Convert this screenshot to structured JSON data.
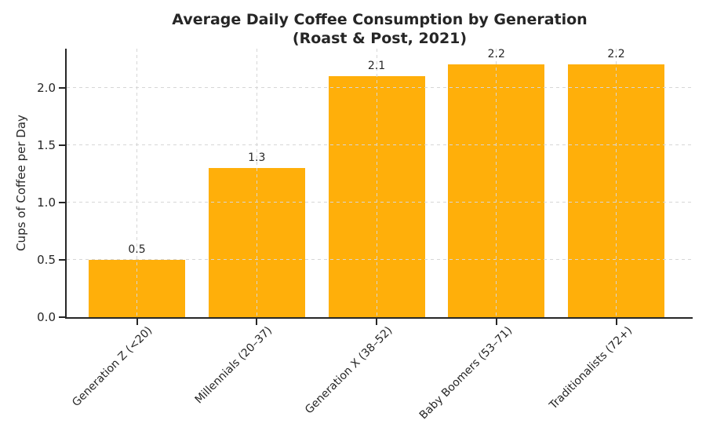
{
  "chart_data": {
    "type": "bar",
    "title": "Average Daily Coffee Consumption by Generation",
    "subtitle": "(Roast & Post, 2021)",
    "categories": [
      "Generation Z (<20)",
      "Millennials (20–37)",
      "Generation X (38–52)",
      "Baby Boomers (53–71)",
      "Traditionalists (72+)"
    ],
    "values": [
      0.5,
      1.3,
      2.1,
      2.2,
      2.2
    ],
    "bar_value_labels": [
      "0.5",
      "1.3",
      "2.1",
      "2.2",
      "2.2"
    ],
    "xlabel": "",
    "ylabel": "Cups of Coffee per Day",
    "ytick_values": [
      0.0,
      0.5,
      1.0,
      1.5,
      2.0
    ],
    "ytick_labels": [
      "0.0",
      "0.5",
      "1.0",
      "1.5",
      "2.0"
    ],
    "ylim": [
      0,
      2.34
    ],
    "grid": true,
    "grid_style": "dashed",
    "legend": "none",
    "bar_color": "#FFAF0A",
    "grid_color": "#d6d6d6",
    "axis_color": "#262626",
    "text_color": "#262626",
    "background_color": "#ffffff"
  }
}
